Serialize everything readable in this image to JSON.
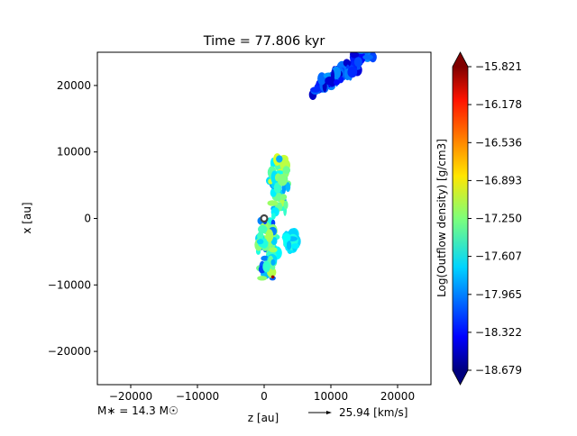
{
  "chart_data": {
    "type": "heatmap",
    "title": "Time = 77.806 kyr",
    "xlabel": "z [au]",
    "ylabel": "x [au]",
    "xlim": [
      -25000,
      25000
    ],
    "ylim": [
      -25000,
      25000
    ],
    "xticks": [
      -20000,
      -10000,
      0,
      10000,
      20000
    ],
    "yticks": [
      -20000,
      -10000,
      0,
      10000,
      20000
    ],
    "xtick_labels": [
      "−20000",
      "−10000",
      "0",
      "10000",
      "20000"
    ],
    "ytick_labels": [
      "−20000",
      "−10000",
      "0",
      "10000",
      "20000"
    ],
    "grid": false,
    "colorbar": {
      "label": "Log(Outflow density) [g/cm3]",
      "range": [
        -18.679,
        -15.821
      ],
      "ticks": [
        -15.821,
        -16.178,
        -16.536,
        -16.893,
        -17.25,
        -17.607,
        -17.965,
        -18.322,
        -18.679
      ],
      "tick_labels": [
        "−15.821",
        "−16.178",
        "−16.536",
        "−16.893",
        "−17.250",
        "−17.607",
        "−17.965",
        "−18.322",
        "−18.679"
      ],
      "colormap": "jet",
      "extend": "both"
    },
    "annotations": {
      "stellar_mass": "M∗ = 14.3 M☉",
      "velocity_key": "25.94 [km/s]"
    },
    "star_marker": {
      "z": 0,
      "x": 0
    },
    "features": [
      {
        "name": "upper-jet",
        "z_range": [
          800,
          3800
        ],
        "x_range": [
          300,
          9000
        ],
        "level_range": [
          -17.9,
          -17.0
        ]
      },
      {
        "name": "lower-jet",
        "z_range": [
          -1000,
          2000
        ],
        "x_range": [
          -9000,
          -300
        ],
        "level_range": [
          -18.2,
          -17.0
        ]
      },
      {
        "name": "lower-blob",
        "z_range": [
          3000,
          5000
        ],
        "x_range": [
          -4500,
          -2300
        ],
        "level_range": [
          -17.8,
          -17.5
        ]
      },
      {
        "name": "far-clump",
        "z_range": [
          8000,
          15500
        ],
        "x_range": [
          19000,
          25000
        ],
        "level_range": [
          -18.5,
          -17.9
        ]
      }
    ]
  }
}
